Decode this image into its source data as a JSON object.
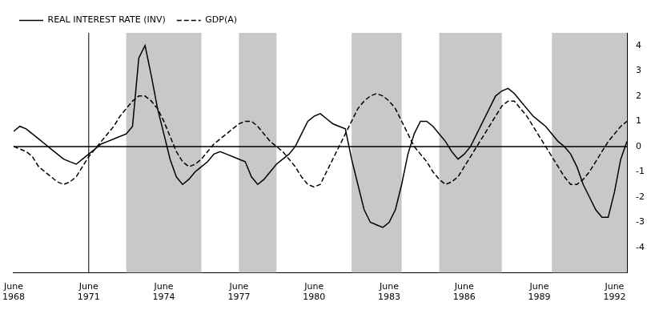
{
  "chart_data": {
    "type": "line",
    "x": [
      1968.0,
      1968.25,
      1968.5,
      1968.75,
      1969.0,
      1969.25,
      1969.5,
      1969.75,
      1970.0,
      1970.25,
      1970.5,
      1970.75,
      1971.0,
      1971.25,
      1971.5,
      1971.75,
      1972.0,
      1972.25,
      1972.5,
      1972.75,
      1973.0,
      1973.25,
      1973.5,
      1973.75,
      1974.0,
      1974.25,
      1974.5,
      1974.75,
      1975.0,
      1975.25,
      1975.5,
      1975.75,
      1976.0,
      1976.25,
      1976.5,
      1976.75,
      1977.0,
      1977.25,
      1977.5,
      1977.75,
      1978.0,
      1978.25,
      1978.5,
      1978.75,
      1979.0,
      1979.25,
      1979.5,
      1979.75,
      1980.0,
      1980.25,
      1980.5,
      1980.75,
      1981.0,
      1981.25,
      1981.5,
      1981.75,
      1982.0,
      1982.25,
      1982.5,
      1982.75,
      1983.0,
      1983.25,
      1983.5,
      1983.75,
      1984.0,
      1984.25,
      1984.5,
      1984.75,
      1985.0,
      1985.25,
      1985.5,
      1985.75,
      1986.0,
      1986.25,
      1986.5,
      1986.75,
      1987.0,
      1987.25,
      1987.5,
      1987.75,
      1988.0,
      1988.25,
      1988.5,
      1988.75,
      1989.0,
      1989.25,
      1989.5,
      1989.75,
      1990.0,
      1990.25,
      1990.5,
      1990.75,
      1991.0,
      1991.25,
      1991.5,
      1991.75,
      1992.0,
      1992.25,
      1992.5
    ],
    "series": [
      {
        "name": "REAL INTEREST RATE (INV)",
        "color": "#000000",
        "line_style": "solid",
        "values": [
          0.6,
          0.8,
          0.7,
          0.5,
          0.3,
          0.1,
          -0.1,
          -0.3,
          -0.5,
          -0.6,
          -0.7,
          -0.5,
          -0.3,
          -0.1,
          0.1,
          0.2,
          0.3,
          0.4,
          0.5,
          0.8,
          3.5,
          4.0,
          2.8,
          1.5,
          0.5,
          -0.5,
          -1.2,
          -1.5,
          -1.3,
          -1.0,
          -0.8,
          -0.6,
          -0.3,
          -0.2,
          -0.3,
          -0.4,
          -0.5,
          -0.6,
          -1.2,
          -1.5,
          -1.3,
          -1.0,
          -0.7,
          -0.5,
          -0.3,
          0.0,
          0.5,
          1.0,
          1.2,
          1.3,
          1.1,
          0.9,
          0.8,
          0.7,
          -0.5,
          -1.5,
          -2.5,
          -3.0,
          -3.1,
          -3.2,
          -3.0,
          -2.5,
          -1.5,
          -0.3,
          0.5,
          1.0,
          1.0,
          0.8,
          0.5,
          0.2,
          -0.2,
          -0.5,
          -0.3,
          0.0,
          0.5,
          1.0,
          1.5,
          2.0,
          2.2,
          2.3,
          2.1,
          1.8,
          1.5,
          1.2,
          1.0,
          0.8,
          0.5,
          0.2,
          0.0,
          -0.3,
          -0.8,
          -1.5,
          -2.0,
          -2.5,
          -2.8,
          -2.8,
          -1.8,
          -0.5,
          0.2
        ]
      },
      {
        "name": "GDP(A)",
        "color": "#000000",
        "line_style": "dashed",
        "values": [
          0.0,
          -0.1,
          -0.2,
          -0.4,
          -0.8,
          -1.0,
          -1.2,
          -1.4,
          -1.5,
          -1.4,
          -1.2,
          -0.8,
          -0.4,
          -0.1,
          0.2,
          0.5,
          0.8,
          1.2,
          1.5,
          1.8,
          2.0,
          2.0,
          1.8,
          1.5,
          1.0,
          0.4,
          -0.2,
          -0.6,
          -0.8,
          -0.7,
          -0.5,
          -0.2,
          0.1,
          0.3,
          0.5,
          0.7,
          0.9,
          1.0,
          1.0,
          0.8,
          0.5,
          0.2,
          0.0,
          -0.2,
          -0.5,
          -0.8,
          -1.2,
          -1.5,
          -1.6,
          -1.5,
          -1.0,
          -0.5,
          0.0,
          0.5,
          1.0,
          1.5,
          1.8,
          2.0,
          2.1,
          2.0,
          1.8,
          1.5,
          1.0,
          0.5,
          0.0,
          -0.3,
          -0.6,
          -1.0,
          -1.3,
          -1.5,
          -1.4,
          -1.2,
          -0.8,
          -0.4,
          0.0,
          0.4,
          0.8,
          1.2,
          1.6,
          1.8,
          1.8,
          1.5,
          1.2,
          0.8,
          0.4,
          0.0,
          -0.4,
          -0.8,
          -1.2,
          -1.5,
          -1.5,
          -1.3,
          -1.0,
          -0.6,
          -0.2,
          0.2,
          0.5,
          0.8,
          1.0
        ]
      }
    ],
    "xlim": [
      1968.0,
      1992.5
    ],
    "ylim": [
      -5,
      4.5
    ],
    "yticks": [
      -4,
      -3,
      -2,
      -1,
      0,
      1,
      2,
      3,
      4
    ],
    "xticks": [
      {
        "value": 1968,
        "label": "June\n1968"
      },
      {
        "value": 1971,
        "label": "June\n1971"
      },
      {
        "value": 1974,
        "label": "June\n1974"
      },
      {
        "value": 1977,
        "label": "June\n1977"
      },
      {
        "value": 1980,
        "label": "June\n1980"
      },
      {
        "value": 1983,
        "label": "June\n1983"
      },
      {
        "value": 1986,
        "label": "June\n1986"
      },
      {
        "value": 1989,
        "label": "June\n1989"
      },
      {
        "value": 1992,
        "label": "June\n1992"
      }
    ],
    "shaded_regions": {
      "color": "#c8c8c8",
      "ranges": [
        [
          1972.5,
          1975.5
        ],
        [
          1977.0,
          1978.5
        ],
        [
          1981.5,
          1983.5
        ],
        [
          1985.0,
          1987.5
        ],
        [
          1989.5,
          1992.5
        ]
      ]
    },
    "vlines": [
      1971.0
    ],
    "hlines": [
      0
    ],
    "grid": false,
    "legend": "upper left"
  }
}
